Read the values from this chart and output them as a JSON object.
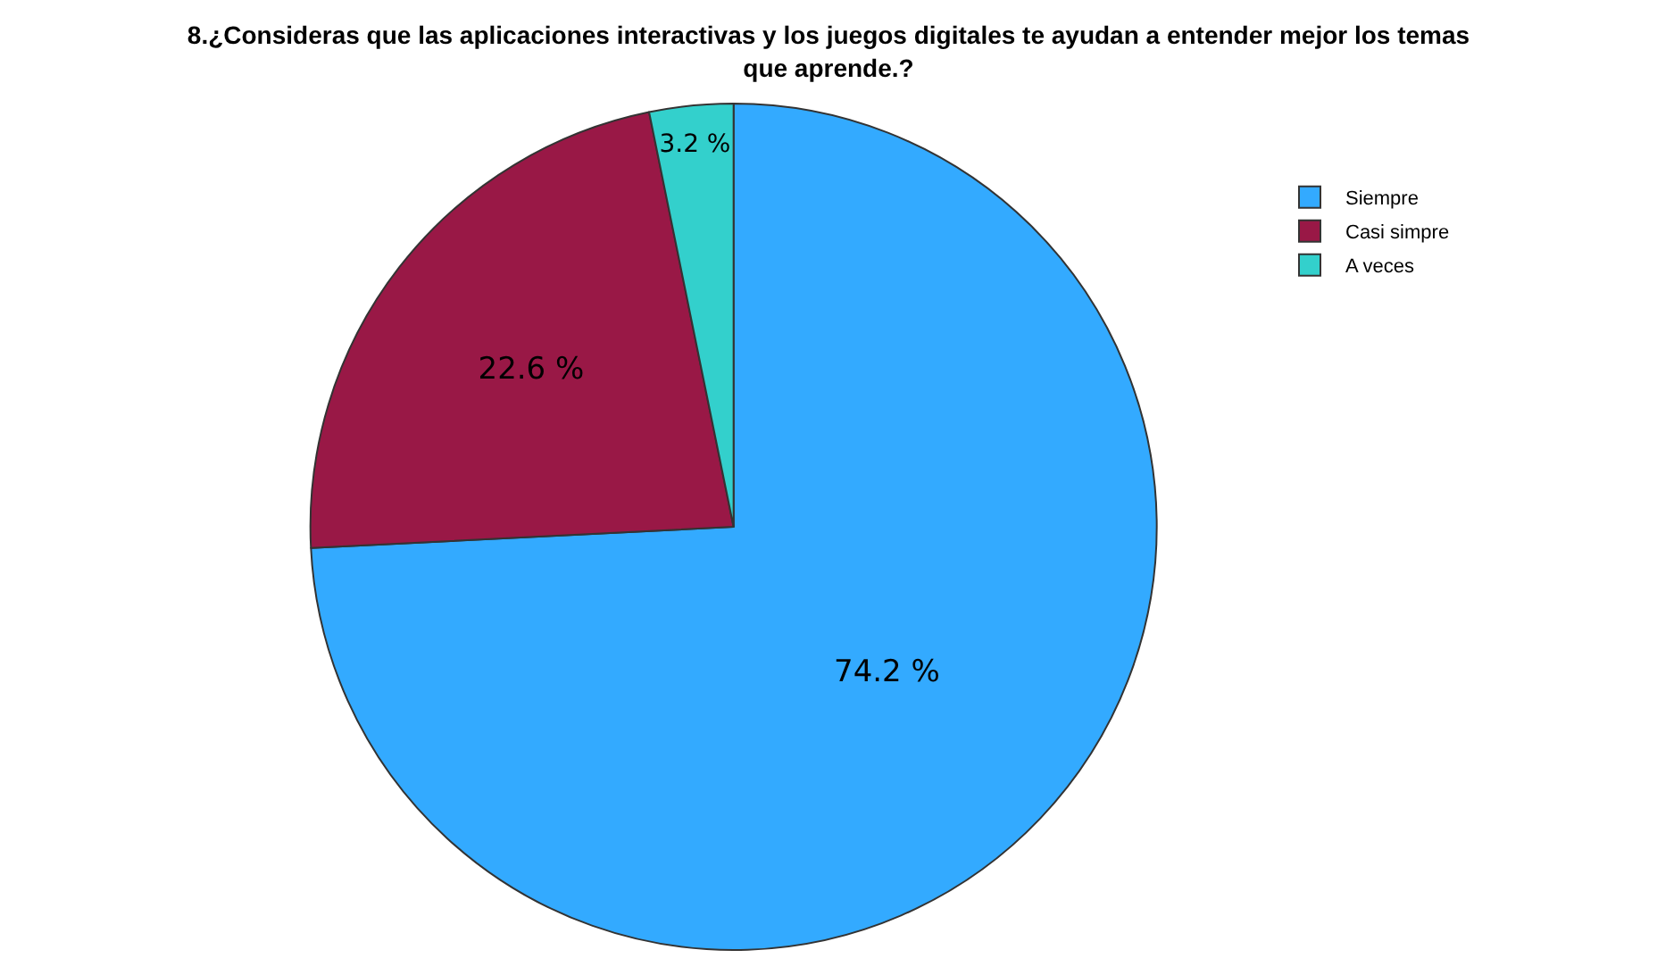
{
  "chart_data": {
    "type": "pie",
    "title": "8.¿Consideras que las aplicaciones interactivas y los juegos digitales te ayudan a entender mejor los temas que aprende.?",
    "categories": [
      "Siempre",
      "Casi simpre",
      "A veces"
    ],
    "values": [
      74.2,
      22.6,
      3.2
    ],
    "value_labels": [
      "74.2 %",
      "22.6 %",
      "3.2 %"
    ],
    "colors": [
      "#33aaff",
      "#991846",
      "#33d0cc"
    ],
    "legend": "top right"
  }
}
